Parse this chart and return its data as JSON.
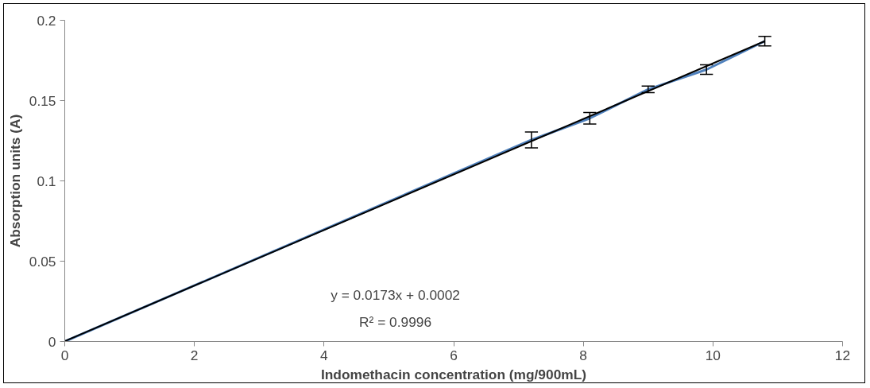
{
  "chart_data": {
    "type": "line",
    "xlabel": "Indomethacin concentration (mg/900mL)",
    "ylabel": "Absorption units (A)",
    "xlim": [
      0,
      12
    ],
    "xticks": [
      0,
      2,
      4,
      6,
      8,
      10,
      12
    ],
    "ylim": [
      0,
      0.2
    ],
    "yticks": [
      0,
      0.05,
      0.1,
      0.15,
      0.2
    ],
    "grid": false,
    "marker": "none",
    "annotations": [
      "y = 0.0173x + 0.0002",
      "R² = 0.9996"
    ],
    "series": [
      {
        "color": "#4f81bd",
        "x": [
          0,
          7.2,
          8.1,
          9.0,
          9.9,
          10.8
        ],
        "values": [
          0,
          0.1255,
          0.139,
          0.157,
          0.1693,
          0.187
        ],
        "errors": [
          null,
          0.005,
          0.0036,
          0.002,
          0.003,
          0.003
        ]
      },
      {
        "type": "line",
        "color": "#000000",
        "x": [
          0,
          10.8
        ],
        "values": [
          0.0002,
          0.187
        ]
      }
    ]
  }
}
